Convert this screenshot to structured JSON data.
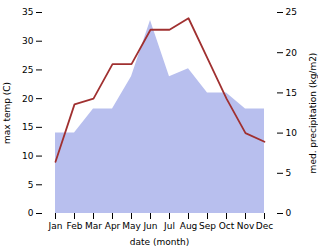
{
  "chart_data": {
    "type": "line",
    "xlabel": "date (month)",
    "ylabel": "max temp (C)",
    "y2label": "med. precipitation (kg/m2)",
    "categories": [
      "Jan",
      "Feb",
      "Mar",
      "Apr",
      "May",
      "Jun",
      "Jul",
      "Aug",
      "Sep",
      "Oct",
      "Nov",
      "Dec"
    ],
    "series": [
      {
        "type": "area",
        "axis": "y2",
        "color": "#b8bfee",
        "values": [
          10,
          10,
          13,
          13,
          17,
          24,
          17,
          18,
          15,
          15,
          13,
          13
        ]
      },
      {
        "type": "line",
        "color": "#a03030",
        "values": [
          9,
          19,
          20,
          26,
          26,
          32,
          32,
          34,
          27,
          20,
          14,
          12.5
        ]
      }
    ],
    "ylim": [
      0,
      35
    ],
    "yticks": [
      0,
      5,
      10,
      15,
      20,
      25,
      30,
      35
    ],
    "y2lim": [
      0,
      25
    ],
    "y2ticks": [
      0,
      5,
      10,
      15,
      20,
      25
    ]
  }
}
